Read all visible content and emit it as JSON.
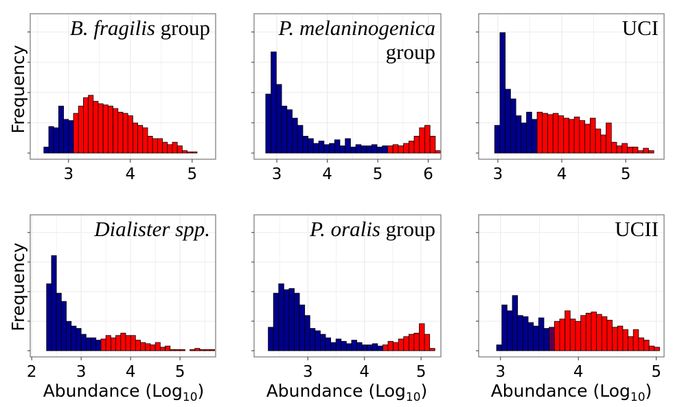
{
  "figure": {
    "ylabel": "Frequency",
    "xlabel_main": "Abundance (Log",
    "xlabel_sub": "10",
    "xlabel_close": ")"
  },
  "colors": {
    "low": "#00008b",
    "high": "#ff0000",
    "mixed": "#5a0050",
    "outline": "#000000",
    "panel_border": "#7f7f7f",
    "grid": "#ebebeb"
  },
  "chart_data": [
    {
      "type": "bar",
      "title_lines": [
        [
          {
            "text": "B. fragilis",
            "italic": true
          },
          {
            "text": " group",
            "italic": false
          }
        ]
      ],
      "xlim": [
        2.38,
        5.38
      ],
      "ylim": [
        0,
        1.0
      ],
      "xticks": [
        3,
        4,
        5
      ],
      "bin_start": 2.6,
      "bin_width": 0.08,
      "values": [
        0.05,
        0.22,
        0.21,
        0.39,
        0.28,
        0.27,
        0.33,
        0.39,
        0.46,
        0.48,
        0.43,
        0.41,
        0.4,
        0.39,
        0.37,
        0.34,
        0.33,
        0.31,
        0.25,
        0.23,
        0.21,
        0.14,
        0.12,
        0.12,
        0.09,
        0.07,
        0.09,
        0.06,
        0.02,
        0.01,
        0.01
      ],
      "groups": [
        "low",
        "low",
        "low",
        "low",
        "low",
        "low",
        "high",
        "high",
        "high",
        "high",
        "high",
        "high",
        "high",
        "high",
        "high",
        "high",
        "high",
        "high",
        "high",
        "high",
        "high",
        "high",
        "high",
        "high",
        "high",
        "high",
        "high",
        "high",
        "high",
        "high",
        "high"
      ]
    },
    {
      "type": "bar",
      "title_lines": [
        [
          {
            "text": "P. melaninogenica",
            "italic": true
          }
        ],
        [
          {
            "text": "group",
            "italic": false
          }
        ]
      ],
      "xlim": [
        2.55,
        6.25
      ],
      "ylim": [
        0,
        1.0
      ],
      "xticks": [
        3,
        4,
        5,
        6
      ],
      "bin_start": 2.78,
      "bin_width": 0.105,
      "values": [
        0.49,
        0.84,
        0.57,
        0.39,
        0.36,
        0.29,
        0.23,
        0.14,
        0.12,
        0.08,
        0.1,
        0.07,
        0.08,
        0.11,
        0.06,
        0.12,
        0.05,
        0.07,
        0.06,
        0.06,
        0.07,
        0.05,
        0.06,
        0.06,
        0.07,
        0.06,
        0.08,
        0.1,
        0.14,
        0.21,
        0.23,
        0.14,
        0.02
      ],
      "groups": [
        "low",
        "low",
        "low",
        "low",
        "low",
        "low",
        "low",
        "low",
        "low",
        "low",
        "low",
        "low",
        "low",
        "low",
        "low",
        "low",
        "low",
        "low",
        "low",
        "low",
        "low",
        "low",
        "low",
        "high",
        "high",
        "high",
        "high",
        "high",
        "high",
        "high",
        "high",
        "high",
        "high"
      ]
    },
    {
      "type": "bar",
      "title_lines": [
        [
          {
            "text": "UCI",
            "italic": false
          }
        ]
      ],
      "xlim": [
        2.7,
        5.6
      ],
      "ylim": [
        0,
        1.0
      ],
      "xticks": [
        3,
        4,
        5
      ],
      "bin_start": 2.95,
      "bin_width": 0.083,
      "values": [
        0.23,
        1.0,
        0.53,
        0.45,
        0.31,
        0.25,
        0.34,
        0.28,
        0.34,
        0.33,
        0.32,
        0.33,
        0.31,
        0.29,
        0.28,
        0.3,
        0.27,
        0.24,
        0.29,
        0.2,
        0.15,
        0.25,
        0.09,
        0.06,
        0.08,
        0.05,
        0.05,
        0.02,
        0.04,
        0.02
      ],
      "groups": [
        "low",
        "low",
        "low",
        "low",
        "low",
        "low",
        "low",
        "low",
        "high",
        "high",
        "high",
        "high",
        "high",
        "high",
        "high",
        "high",
        "high",
        "high",
        "high",
        "high",
        "high",
        "high",
        "high",
        "high",
        "high",
        "high",
        "high",
        "high",
        "high",
        "high"
      ]
    },
    {
      "type": "bar",
      "title_lines": [
        [
          {
            "text": "Dialister spp.",
            "italic": true
          }
        ]
      ],
      "xlim": [
        1.97,
        5.72
      ],
      "ylim": [
        0,
        1.0
      ],
      "xticks": [
        2,
        3,
        4,
        5
      ],
      "bin_start": 2.3,
      "bin_width": 0.1,
      "values": [
        0.57,
        0.81,
        0.49,
        0.42,
        0.25,
        0.21,
        0.19,
        0.14,
        0.11,
        0.11,
        0.09,
        0.1,
        0.13,
        0.11,
        0.13,
        0.15,
        0.13,
        0.13,
        0.09,
        0.07,
        0.06,
        0.05,
        0.07,
        0.03,
        0.04,
        0.01,
        0.01,
        0.01,
        0.0,
        0.01,
        0.02,
        0.01,
        0.01,
        0.01
      ],
      "groups": [
        "low",
        "low",
        "low",
        "low",
        "low",
        "low",
        "low",
        "low",
        "low",
        "low",
        "low",
        "high",
        "high",
        "high",
        "high",
        "high",
        "high",
        "high",
        "high",
        "high",
        "high",
        "high",
        "high",
        "high",
        "high",
        "high",
        "high",
        "high",
        "high",
        "high",
        "high",
        "high",
        "high",
        "high"
      ]
    },
    {
      "type": "bar",
      "title_lines": [
        [
          {
            "text": "P. oralis",
            "italic": true
          },
          {
            "text": " group",
            "italic": false
          }
        ]
      ],
      "xlim": [
        2.05,
        5.35
      ],
      "ylim": [
        0,
        1.0
      ],
      "xticks": [
        3,
        4,
        5
      ],
      "bin_start": 2.3,
      "bin_width": 0.092,
      "values": [
        0.2,
        0.49,
        0.57,
        0.52,
        0.53,
        0.49,
        0.39,
        0.3,
        0.19,
        0.17,
        0.14,
        0.11,
        0.07,
        0.1,
        0.08,
        0.06,
        0.09,
        0.07,
        0.05,
        0.05,
        0.06,
        0.04,
        0.05,
        0.08,
        0.07,
        0.1,
        0.12,
        0.14,
        0.15,
        0.23,
        0.14,
        0.02
      ],
      "groups": [
        "low",
        "low",
        "low",
        "low",
        "low",
        "low",
        "low",
        "low",
        "low",
        "low",
        "low",
        "low",
        "low",
        "low",
        "low",
        "low",
        "low",
        "low",
        "low",
        "low",
        "low",
        "low",
        "high",
        "high",
        "high",
        "high",
        "high",
        "high",
        "high",
        "high",
        "high",
        "high"
      ]
    },
    {
      "type": "bar",
      "title_lines": [
        [
          {
            "text": "UCII",
            "italic": false
          }
        ]
      ],
      "xlim": [
        2.72,
        5.1
      ],
      "ylim": [
        0,
        1.0
      ],
      "xticks": [
        3,
        4,
        5
      ],
      "bin_start": 2.95,
      "bin_width": 0.0675,
      "values": [
        0.05,
        0.39,
        0.34,
        0.47,
        0.3,
        0.29,
        0.24,
        0.21,
        0.28,
        0.19,
        0.2,
        0.25,
        0.27,
        0.34,
        0.27,
        0.25,
        0.3,
        0.32,
        0.33,
        0.31,
        0.29,
        0.26,
        0.2,
        0.21,
        0.18,
        0.12,
        0.18,
        0.11,
        0.09,
        0.04,
        0.03
      ],
      "groups": [
        "low",
        "low",
        "low",
        "low",
        "low",
        "low",
        "low",
        "low",
        "low",
        "low",
        "mixed",
        "high",
        "high",
        "high",
        "high",
        "high",
        "high",
        "high",
        "high",
        "high",
        "high",
        "high",
        "high",
        "high",
        "high",
        "high",
        "high",
        "high",
        "high",
        "high",
        "high"
      ]
    }
  ]
}
